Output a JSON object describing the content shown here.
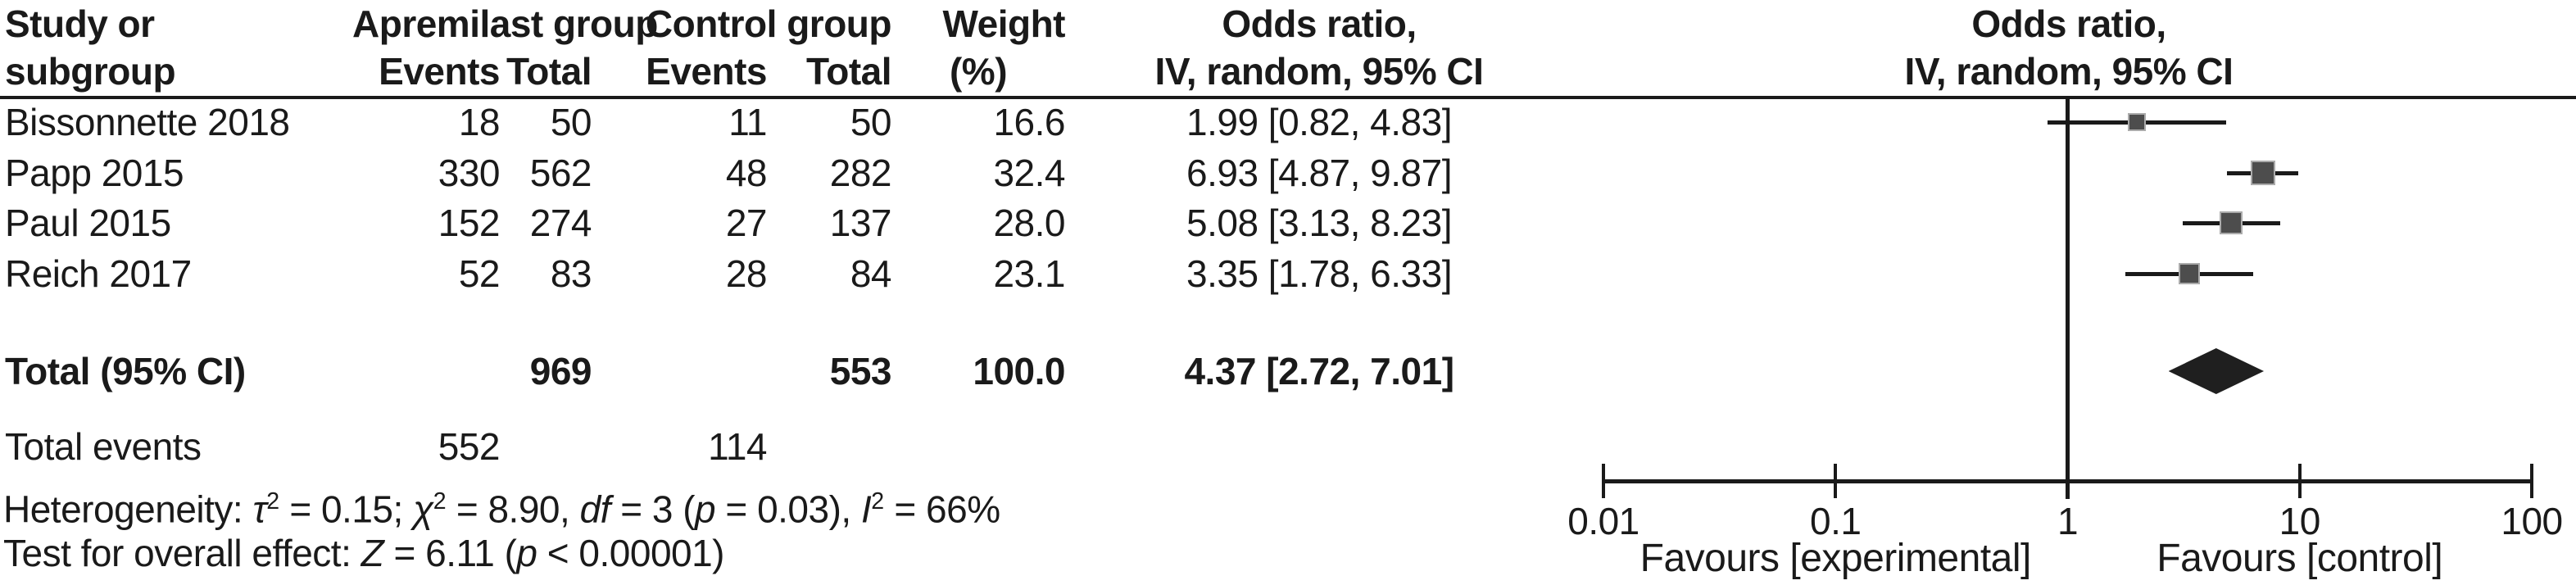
{
  "colors": {
    "text": "#1a1a1a",
    "line": "#1a1a1a",
    "marker_fill": "#4d4d4d",
    "marker_border": "#ababab",
    "diamond_fill": "#1f1f1f"
  },
  "table": {
    "headers": {
      "study_line1": "Study or",
      "study_line2": "subgroup",
      "group1": "Apremilast group",
      "group2": "Control group",
      "events": "Events",
      "total": "Total",
      "weight_line1": "Weight",
      "weight_line2": "(%)",
      "or_line1": "Odds ratio,",
      "or_line2": "IV, random, 95% CI"
    },
    "plot_header": {
      "line1": "Odds ratio,",
      "line2": "IV, random, 95% CI"
    },
    "total_row": {
      "label": "Total (95% CI)",
      "total1": "969",
      "total2": "553",
      "weight": "100.0",
      "ci_text": "4.37 [2.72, 7.01]"
    },
    "total_events_row": {
      "label": "Total events",
      "events1": "552",
      "events2": "114"
    },
    "heterogeneity_segments": [
      {
        "text": "Heterogeneity: "
      },
      {
        "text": "τ",
        "italic": true
      },
      {
        "text": "2",
        "sup": true
      },
      {
        "text": " = 0.15; "
      },
      {
        "text": "χ",
        "italic": true
      },
      {
        "text": "2",
        "sup": true
      },
      {
        "text": " = 8.90, "
      },
      {
        "text": "df",
        "italic": true
      },
      {
        "text": " = 3 ("
      },
      {
        "text": "p",
        "italic": true
      },
      {
        "text": " = 0.03), "
      },
      {
        "text": "I",
        "italic": true
      },
      {
        "text": "2",
        "sup": true
      },
      {
        "text": " = 66%"
      }
    ],
    "overall_effect_segments": [
      {
        "text": "Test for overall effect: "
      },
      {
        "text": "Z",
        "italic": true
      },
      {
        "text": " = 6.11 ("
      },
      {
        "text": "p",
        "italic": true
      },
      {
        "text": " < 0.00001)"
      }
    ]
  },
  "chart_data": {
    "type": "forest",
    "title": "Odds ratio, IV, random, 95% CI",
    "x_scale": "log10",
    "x_min": 0.01,
    "x_max": 100,
    "x_ticks": [
      0.01,
      0.1,
      1,
      10,
      100
    ],
    "x_tick_labels": [
      "0.01",
      "0.1",
      "1",
      "10",
      "100"
    ],
    "null_line": 1,
    "favours_left": "Favours [experimental]",
    "favours_right": "Favours [control]",
    "studies": [
      {
        "label": "Bissonnette 2018",
        "events1": "18",
        "total1": "50",
        "events2": "11",
        "total2": "50",
        "weight": "16.6",
        "weight_pct": 16.6,
        "or": 1.99,
        "ci_low": 0.82,
        "ci_high": 4.83,
        "ci_text": "1.99 [0.82, 4.83]"
      },
      {
        "label": "Papp 2015",
        "events1": "330",
        "total1": "562",
        "events2": "48",
        "total2": "282",
        "weight": "32.4",
        "weight_pct": 32.4,
        "or": 6.93,
        "ci_low": 4.87,
        "ci_high": 9.87,
        "ci_text": "6.93 [4.87, 9.87]"
      },
      {
        "label": "Paul 2015",
        "events1": "152",
        "total1": "274",
        "events2": "27",
        "total2": "137",
        "weight": "28.0",
        "weight_pct": 28.0,
        "or": 5.08,
        "ci_low": 3.13,
        "ci_high": 8.23,
        "ci_text": "5.08 [3.13, 8.23]"
      },
      {
        "label": "Reich 2017",
        "events1": "52",
        "total1": "83",
        "events2": "28",
        "total2": "84",
        "weight": "23.1",
        "weight_pct": 23.1,
        "or": 3.35,
        "ci_low": 1.78,
        "ci_high": 6.33,
        "ci_text": "3.35 [1.78, 6.33]"
      }
    ],
    "total": {
      "label": "Total (95% CI)",
      "or": 4.37,
      "ci_low": 2.72,
      "ci_high": 7.01,
      "ci_text": "4.37 [2.72, 7.01]"
    }
  }
}
